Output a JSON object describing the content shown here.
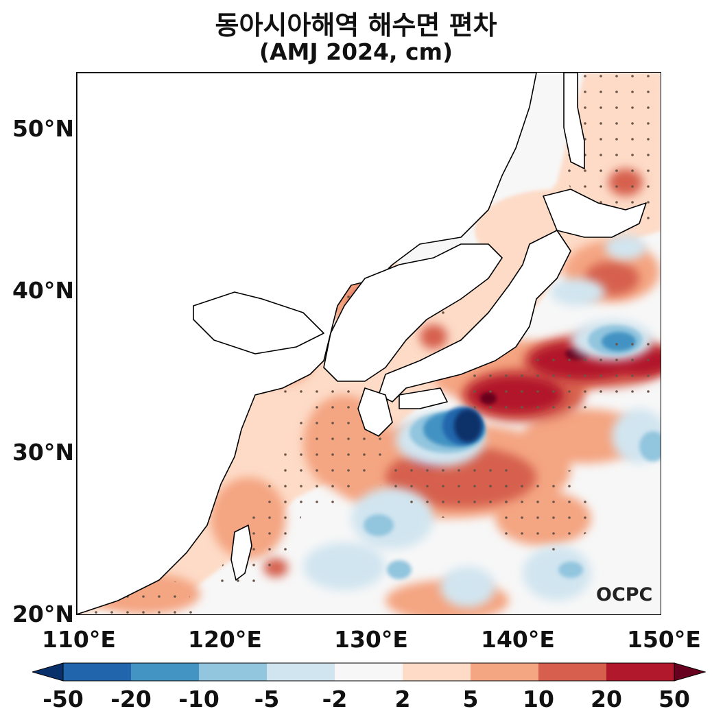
{
  "title": {
    "line1": "동아시아해역 해수면 편차",
    "line2": "(AMJ 2024, cm)"
  },
  "map": {
    "lon_range": [
      110,
      150
    ],
    "lat_range": [
      20,
      53.5
    ],
    "x_ticks": [
      "110°E",
      "120°E",
      "130°E",
      "140°E",
      "150°E"
    ],
    "y_ticks": [
      "50°N",
      "40°N",
      "30°N",
      "20°N"
    ],
    "watermark": "OCPC",
    "land_color": "#ffffff",
    "stippling": "significant regions marked with dots"
  },
  "colorbar": {
    "labels": [
      "-50",
      "-20",
      "-10",
      "-5",
      "-2",
      "2",
      "5",
      "10",
      "20",
      "50"
    ],
    "colors": [
      "#08306b",
      "#2166ac",
      "#4393c3",
      "#92c5de",
      "#d1e5f0",
      "#f7f7f7",
      "#fddbc7",
      "#f4a582",
      "#d6604d",
      "#b2182b",
      "#67001f"
    ],
    "extend": "both"
  }
}
